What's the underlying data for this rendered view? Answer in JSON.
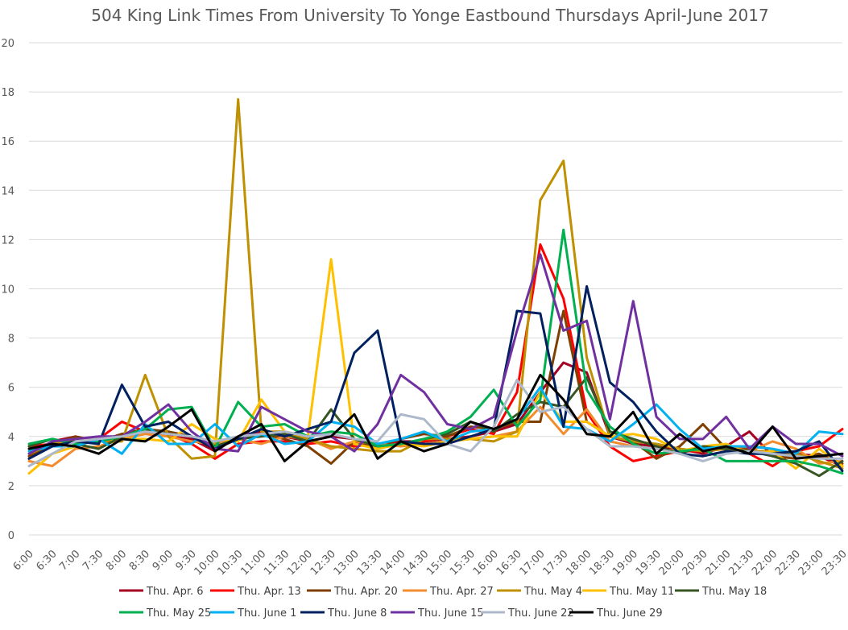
{
  "chart_data": {
    "type": "line",
    "title": "504 King Link Times From University To Yonge Eastbound Thursdays April-June 2017",
    "xlabel": "",
    "ylabel": "",
    "ylim": [
      0,
      20
    ],
    "yticks": [
      0,
      2,
      4,
      6,
      8,
      10,
      12,
      14,
      16,
      18,
      20
    ],
    "grid": true,
    "legend_position": "bottom",
    "x": [
      "6:00",
      "6:30",
      "7:00",
      "7:30",
      "8:00",
      "8:30",
      "9:00",
      "9:30",
      "10:00",
      "10:30",
      "11:00",
      "11:30",
      "12:00",
      "12:30",
      "13:00",
      "13:30",
      "14:00",
      "14:30",
      "15:00",
      "15:30",
      "16:00",
      "16:30",
      "17:00",
      "17:30",
      "18:00",
      "18:30",
      "19:00",
      "19:30",
      "20:00",
      "20:30",
      "21:00",
      "21:30",
      "22:00",
      "22:30",
      "23:00",
      "23:30"
    ],
    "series": [
      {
        "name": "Thu. Apr. 6",
        "color": "#a50021",
        "values": [
          3.1,
          3.8,
          4.0,
          3.8,
          4.1,
          4.2,
          4.0,
          3.9,
          3.4,
          4.0,
          4.2,
          4.0,
          3.8,
          4.0,
          3.9,
          3.6,
          3.8,
          3.8,
          3.9,
          4.0,
          4.2,
          4.5,
          5.8,
          7.0,
          6.6,
          4.0,
          3.7,
          3.6,
          3.5,
          3.3,
          3.6,
          4.2,
          3.2,
          3.3,
          3.2,
          2.8
        ]
      },
      {
        "name": "Thu. Apr. 13",
        "color": "#ff0000",
        "values": [
          3.6,
          3.7,
          3.8,
          3.9,
          4.6,
          4.2,
          4.1,
          3.7,
          3.1,
          3.7,
          3.8,
          3.8,
          3.7,
          3.8,
          3.6,
          3.7,
          3.7,
          3.8,
          4.0,
          4.3,
          4.1,
          5.8,
          11.8,
          9.6,
          5.0,
          3.6,
          3.0,
          3.2,
          3.4,
          3.4,
          3.5,
          3.3,
          2.8,
          3.4,
          3.6,
          4.3
        ]
      },
      {
        "name": "Thu. Apr. 20",
        "color": "#7f3f00",
        "values": [
          3.2,
          3.7,
          4.0,
          3.8,
          4.1,
          4.3,
          4.2,
          4.0,
          3.5,
          3.9,
          4.1,
          3.9,
          3.6,
          2.9,
          3.8,
          3.6,
          3.9,
          4.1,
          4.0,
          4.4,
          4.3,
          4.6,
          4.6,
          9.1,
          4.6,
          4.0,
          3.8,
          3.1,
          3.6,
          4.5,
          3.5,
          3.5,
          3.2,
          3.1,
          3.3,
          2.9
        ]
      },
      {
        "name": "Thu. Apr. 27",
        "color": "#f28c2e",
        "values": [
          3.0,
          2.8,
          3.5,
          3.6,
          3.9,
          4.1,
          4.0,
          3.8,
          3.7,
          3.9,
          3.7,
          4.0,
          3.9,
          3.5,
          3.8,
          3.7,
          3.6,
          3.7,
          3.8,
          3.9,
          4.0,
          4.2,
          5.2,
          4.1,
          5.1,
          3.8,
          3.6,
          3.5,
          3.4,
          3.5,
          3.6,
          3.4,
          3.8,
          3.5,
          2.9,
          3.0
        ]
      },
      {
        "name": "Thu. May 4",
        "color": "#bf9000",
        "values": [
          3.3,
          3.7,
          3.9,
          3.8,
          3.8,
          6.5,
          4.0,
          3.1,
          3.2,
          17.7,
          4.2,
          4.2,
          3.9,
          3.6,
          3.5,
          3.4,
          3.4,
          3.9,
          3.9,
          3.9,
          3.8,
          4.2,
          13.6,
          15.2,
          7.2,
          4.0,
          3.8,
          3.7,
          3.5,
          3.4,
          3.5,
          3.4,
          3.4,
          3.3,
          3.0,
          2.7
        ]
      },
      {
        "name": "Thu. May 11",
        "color": "#ffc000",
        "values": [
          2.5,
          3.3,
          3.6,
          3.9,
          3.9,
          3.9,
          3.8,
          4.5,
          3.9,
          3.8,
          5.5,
          4.2,
          4.0,
          11.2,
          3.7,
          3.5,
          3.7,
          3.6,
          3.8,
          3.9,
          4.0,
          4.0,
          5.8,
          4.6,
          4.6,
          4.0,
          4.1,
          3.9,
          3.4,
          3.6,
          3.7,
          3.3,
          3.4,
          2.7,
          3.5,
          2.8
        ]
      },
      {
        "name": "Thu. May 18",
        "color": "#375623",
        "values": [
          3.6,
          3.9,
          3.7,
          3.5,
          4.0,
          4.3,
          4.1,
          4.0,
          3.6,
          3.9,
          4.0,
          4.1,
          3.8,
          5.1,
          3.9,
          3.6,
          3.7,
          3.9,
          4.1,
          4.6,
          4.2,
          4.9,
          5.4,
          5.2,
          6.4,
          4.2,
          3.9,
          3.6,
          3.3,
          3.6,
          3.5,
          3.4,
          3.2,
          2.9,
          2.4,
          3.0
        ]
      },
      {
        "name": "Thu. May 25",
        "color": "#00b050",
        "values": [
          3.7,
          3.9,
          3.7,
          3.8,
          4.0,
          4.3,
          5.1,
          5.2,
          3.5,
          5.4,
          4.4,
          4.5,
          4.0,
          4.2,
          4.1,
          3.6,
          3.7,
          3.9,
          4.2,
          4.8,
          5.9,
          4.4,
          5.5,
          12.4,
          5.9,
          4.4,
          3.7,
          3.3,
          3.4,
          3.5,
          3.0,
          3.0,
          3.0,
          3.0,
          2.8,
          2.5
        ]
      },
      {
        "name": "Thu. June 1",
        "color": "#00b0f0",
        "values": [
          3.4,
          3.6,
          3.6,
          3.9,
          3.3,
          4.5,
          3.7,
          3.7,
          4.5,
          3.6,
          4.1,
          3.7,
          3.8,
          4.6,
          4.4,
          3.7,
          3.9,
          4.2,
          3.8,
          4.2,
          4.3,
          4.7,
          6.0,
          4.4,
          4.3,
          3.8,
          4.5,
          5.3,
          4.3,
          3.5,
          3.6,
          3.6,
          3.5,
          3.3,
          4.2,
          4.1
        ]
      },
      {
        "name": "Thu. June 8",
        "color": "#002060",
        "values": [
          3.1,
          3.6,
          3.8,
          3.7,
          6.1,
          4.4,
          4.6,
          4.0,
          3.5,
          3.9,
          4.3,
          4.0,
          4.3,
          4.6,
          7.4,
          8.3,
          3.8,
          3.7,
          3.7,
          4.0,
          4.3,
          9.1,
          9.0,
          4.4,
          10.1,
          6.2,
          5.4,
          4.2,
          3.3,
          3.2,
          3.4,
          3.3,
          3.3,
          3.4,
          3.8,
          2.6
        ]
      },
      {
        "name": "Thu. June 15",
        "color": "#7030a0",
        "values": [
          3.3,
          3.8,
          3.9,
          4.0,
          4.0,
          4.6,
          5.3,
          4.2,
          3.5,
          3.4,
          5.2,
          4.7,
          4.2,
          4.0,
          3.4,
          4.5,
          6.5,
          5.8,
          4.5,
          4.3,
          4.8,
          8.3,
          11.4,
          8.3,
          8.7,
          4.7,
          9.5,
          4.8,
          3.9,
          3.9,
          4.8,
          3.5,
          4.4,
          3.7,
          3.7,
          3.2
        ]
      },
      {
        "name": "Thu. June 22",
        "color": "#adb9ca",
        "values": [
          2.8,
          3.3,
          3.8,
          3.9,
          4.0,
          4.2,
          4.1,
          4.0,
          3.8,
          4.0,
          4.1,
          4.2,
          4.0,
          4.1,
          3.9,
          3.8,
          4.9,
          4.7,
          3.7,
          3.4,
          4.4,
          6.3,
          5.0,
          5.2,
          4.3,
          3.6,
          3.6,
          3.5,
          3.3,
          3.0,
          3.3,
          3.4,
          3.3,
          3.2,
          3.1,
          3.1
        ]
      },
      {
        "name": "Thu. June 29",
        "color": "#000000",
        "values": [
          3.5,
          3.7,
          3.6,
          3.3,
          3.9,
          3.8,
          4.4,
          5.1,
          3.4,
          4.0,
          4.5,
          3.0,
          3.8,
          4.0,
          4.9,
          3.1,
          3.8,
          3.4,
          3.7,
          4.6,
          4.3,
          4.7,
          6.5,
          5.5,
          4.1,
          4.0,
          5.0,
          3.3,
          4.1,
          3.4,
          3.6,
          3.3,
          4.4,
          3.1,
          3.2,
          3.3
        ]
      }
    ]
  }
}
